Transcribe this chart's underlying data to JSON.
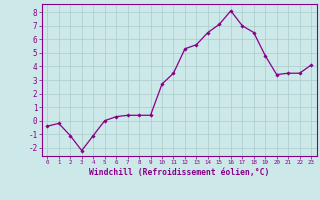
{
  "x": [
    0,
    1,
    2,
    3,
    4,
    5,
    6,
    7,
    8,
    9,
    10,
    11,
    12,
    13,
    14,
    15,
    16,
    17,
    18,
    19,
    20,
    21,
    22,
    23
  ],
  "y": [
    -0.4,
    -0.2,
    -1.1,
    -2.2,
    -1.1,
    0.0,
    0.3,
    0.4,
    0.4,
    0.4,
    2.7,
    3.5,
    5.3,
    5.6,
    6.5,
    7.1,
    8.1,
    7.0,
    6.5,
    4.8,
    3.4,
    3.5,
    3.5,
    4.1
  ],
  "line_color": "#880088",
  "marker": "D",
  "markersize": 1.8,
  "linewidth": 0.9,
  "bg_color": "#cce8e8",
  "grid_color": "#aacccc",
  "xlabel": "Windchill (Refroidissement éolien,°C)",
  "ylabel_ticks": [
    -2,
    -1,
    0,
    1,
    2,
    3,
    4,
    5,
    6,
    7,
    8
  ],
  "xtick_labels": [
    "0",
    "1",
    "2",
    "3",
    "4",
    "5",
    "6",
    "7",
    "8",
    "9",
    "10",
    "11",
    "12",
    "13",
    "14",
    "15",
    "16",
    "17",
    "18",
    "19",
    "20",
    "21",
    "22",
    "23"
  ],
  "ylim": [
    -2.6,
    8.6
  ],
  "xlim": [
    -0.5,
    23.5
  ],
  "spine_color": "#880088",
  "tick_color": "#880088",
  "label_color": "#880088",
  "axis_bg_color": "#cce8e8",
  "ytick_fontsize": 5.5,
  "xtick_fontsize": 4.2,
  "xlabel_fontsize": 5.8
}
